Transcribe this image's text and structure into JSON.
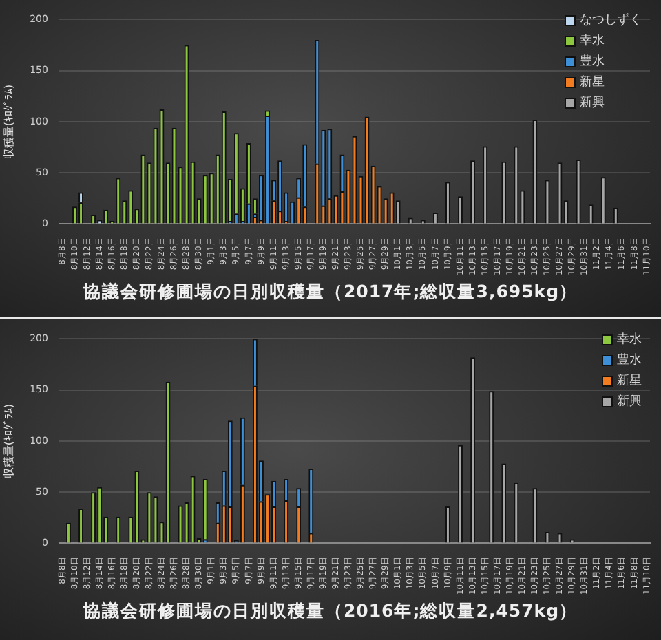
{
  "chart_data": [
    {
      "type": "bar",
      "title": "協議会研修圃場の日別収穫量（2017年;総収量3,695kg）",
      "ylabel": "収穫量(ｷﾛｸﾞﾗﾑ)",
      "stacked": true,
      "grid": "y",
      "legend": "top right",
      "ylim": [
        0,
        200
      ],
      "yticks": [
        0,
        50,
        100,
        150,
        200
      ],
      "categories": [
        "8月8日",
        null,
        "8月10日",
        null,
        "8月12日",
        null,
        "8月14日",
        null,
        "8月16日",
        null,
        "8月18日",
        null,
        "8月20日",
        null,
        "8月22日",
        null,
        "8月24日",
        null,
        "8月26日",
        null,
        "8月28日",
        null,
        "8月30日",
        null,
        "9月1日",
        null,
        "9月3日",
        null,
        "9月5日",
        null,
        "9月7日",
        null,
        "9月9日",
        null,
        "9月11日",
        null,
        "9月13日",
        null,
        "9月15日",
        null,
        "9月17日",
        null,
        "9月19日",
        null,
        "9月21日",
        null,
        "9月23日",
        null,
        "9月25日",
        null,
        "9月27日",
        null,
        "9月29日",
        null,
        "10月1日",
        null,
        "10月3日",
        null,
        "10月5日",
        null,
        "10月7日",
        null,
        "10月9日",
        null,
        "10月11日",
        null,
        "10月13日",
        null,
        "10月15日",
        null,
        "10月17日",
        null,
        "10月19日",
        null,
        "10月21日",
        null,
        "10月23日",
        null,
        "10月25日",
        null,
        "10月27日",
        null,
        "10月29日",
        null,
        "10月31日",
        null,
        "11月2日",
        null,
        "11月4日",
        null,
        "11月6日",
        null,
        "11月8日",
        null,
        "11月10日"
      ],
      "series": [
        {
          "name": "新興",
          "color": "#a6a6a6",
          "values": [
            null,
            null,
            null,
            null,
            null,
            null,
            null,
            null,
            null,
            null,
            null,
            null,
            null,
            null,
            null,
            null,
            null,
            null,
            null,
            null,
            null,
            null,
            null,
            null,
            null,
            null,
            null,
            null,
            null,
            null,
            null,
            null,
            null,
            null,
            null,
            null,
            null,
            null,
            null,
            null,
            null,
            null,
            null,
            null,
            null,
            null,
            null,
            null,
            null,
            null,
            null,
            null,
            null,
            null,
            23,
            null,
            6,
            null,
            4,
            null,
            11,
            null,
            41,
            null,
            27,
            null,
            62,
            null,
            76,
            null,
            null,
            61,
            null,
            76,
            33,
            null,
            102,
            null,
            43,
            null,
            60,
            23,
            null,
            63,
            null,
            19,
            null,
            46,
            null,
            16,
            null,
            null,
            null,
            null,
            null
          ]
        },
        {
          "name": "新星",
          "color": "#f47c20",
          "values": [
            null,
            null,
            null,
            null,
            null,
            null,
            null,
            null,
            null,
            null,
            null,
            null,
            null,
            null,
            null,
            null,
            null,
            null,
            null,
            null,
            null,
            null,
            null,
            null,
            null,
            null,
            null,
            null,
            null,
            null,
            null,
            7,
            4,
            null,
            23,
            13,
            3,
            null,
            26,
            17,
            null,
            59,
            18,
            25,
            28,
            32,
            53,
            86,
            47,
            105,
            57,
            37,
            25,
            31,
            null,
            null,
            null,
            null,
            null,
            null,
            null,
            null,
            null,
            null,
            null,
            null,
            null,
            null,
            null,
            null,
            null,
            null,
            null,
            null,
            null,
            null,
            null,
            null,
            null,
            null,
            null,
            null,
            null,
            null,
            null,
            null,
            null,
            null,
            null,
            null,
            null,
            null,
            null,
            null,
            null
          ]
        },
        {
          "name": "豊水",
          "color": "#3d8fd8",
          "values": [
            null,
            null,
            null,
            null,
            null,
            null,
            null,
            null,
            null,
            null,
            null,
            null,
            null,
            null,
            null,
            null,
            null,
            null,
            null,
            null,
            null,
            null,
            null,
            null,
            null,
            null,
            null,
            3,
            10,
            3,
            20,
            3,
            44,
            106,
            20,
            49,
            28,
            22,
            19,
            61,
            null,
            121,
            74,
            68,
            null,
            36,
            null,
            null,
            null,
            null,
            null,
            null,
            null,
            null,
            null,
            null,
            null,
            null,
            null,
            null,
            null,
            null,
            null,
            null,
            null,
            null,
            null,
            null,
            null,
            null,
            null,
            null,
            null,
            null,
            null,
            null,
            null,
            null,
            null,
            null,
            null,
            null,
            null,
            null,
            null,
            null,
            null,
            null,
            null,
            null,
            null,
            null,
            null,
            null,
            null
          ]
        },
        {
          "name": "幸水",
          "color": "#8dc63f",
          "values": [
            null,
            null,
            17,
            21,
            null,
            9,
            null,
            14,
            3,
            45,
            23,
            33,
            15,
            68,
            60,
            94,
            112,
            60,
            94,
            56,
            175,
            61,
            25,
            48,
            50,
            68,
            110,
            41,
            79,
            32,
            59,
            15,
            null,
            5,
            null,
            null,
            null,
            null,
            null,
            null,
            null,
            null,
            null,
            null,
            null,
            null,
            null,
            null,
            null,
            null,
            null,
            null,
            null,
            null,
            null,
            null,
            null,
            null,
            null,
            null,
            null,
            null,
            null,
            null,
            null,
            null,
            null,
            null,
            null,
            null,
            null,
            null,
            null,
            null,
            null,
            null,
            null,
            null,
            null,
            null,
            null,
            null,
            null,
            null,
            null,
            null,
            null,
            null,
            null,
            null,
            null,
            null,
            null,
            null,
            null
          ]
        },
        {
          "name": "なつしずく",
          "color": "#bdd7ee",
          "values": [
            null,
            null,
            null,
            10,
            null,
            null,
            4,
            null,
            null,
            null,
            null,
            null,
            null,
            null,
            null,
            null,
            null,
            null,
            null,
            null,
            null,
            null,
            null,
            null,
            null,
            null,
            null,
            null,
            null,
            null,
            null,
            null,
            null,
            null,
            null,
            null,
            null,
            null,
            null,
            null,
            null,
            null,
            null,
            null,
            null,
            null,
            null,
            null,
            null,
            null,
            null,
            null,
            null,
            null,
            null,
            null,
            null,
            null,
            null,
            null,
            null,
            null,
            null,
            null,
            null,
            null,
            null,
            null,
            null,
            null,
            null,
            null,
            null,
            null,
            null,
            null,
            null,
            null,
            null,
            null,
            null,
            null,
            null,
            null,
            null,
            null,
            null,
            null,
            null,
            null,
            null,
            null,
            null,
            null,
            null
          ]
        }
      ]
    },
    {
      "type": "bar",
      "title": "協議会研修圃場の日別収穫量（2016年;総収量2,457kg）",
      "ylabel": "収穫量(ｷﾛｸﾞﾗﾑ)",
      "stacked": true,
      "grid": "y",
      "legend": "top right",
      "ylim": [
        0,
        200
      ],
      "yticks": [
        0,
        50,
        100,
        150,
        200
      ],
      "categories": [
        "8月8日",
        null,
        "8月10日",
        null,
        "8月12日",
        null,
        "8月14日",
        null,
        "8月16日",
        null,
        "8月18日",
        null,
        "8月20日",
        null,
        "8月22日",
        null,
        "8月24日",
        null,
        "8月26日",
        null,
        "8月28日",
        null,
        "8月30日",
        null,
        "9月1日",
        null,
        "9月3日",
        null,
        "9月5日",
        null,
        "9月7日",
        null,
        "9月9日",
        null,
        "9月11日",
        null,
        "9月13日",
        null,
        "9月15日",
        null,
        "9月17日",
        null,
        "9月19日",
        null,
        "9月21日",
        null,
        "9月23日",
        null,
        "9月25日",
        null,
        "9月27日",
        null,
        "9月29日",
        null,
        "10月1日",
        null,
        "10月3日",
        null,
        "10月5日",
        null,
        "10月7日",
        null,
        "10月9日",
        null,
        "10月11日",
        null,
        "10月13日",
        null,
        "10月15日",
        null,
        "10月17日",
        null,
        "10月19日",
        null,
        "10月21日",
        null,
        "10月23日",
        null,
        "10月25日",
        null,
        "10月27日",
        null,
        "10月29日",
        null,
        "10月31日",
        null,
        "11月2日",
        null,
        "11月4日",
        null,
        "11月6日",
        null,
        "11月8日",
        null,
        "11月10日"
      ],
      "series": [
        {
          "name": "新興",
          "color": "#a6a6a6",
          "values": [
            null,
            null,
            null,
            null,
            null,
            null,
            null,
            null,
            null,
            null,
            null,
            null,
            null,
            null,
            null,
            null,
            null,
            null,
            null,
            null,
            null,
            null,
            null,
            null,
            null,
            null,
            null,
            null,
            null,
            null,
            null,
            null,
            null,
            null,
            null,
            null,
            null,
            null,
            null,
            null,
            null,
            null,
            null,
            null,
            null,
            null,
            null,
            null,
            null,
            null,
            null,
            null,
            null,
            null,
            null,
            null,
            null,
            null,
            null,
            null,
            null,
            null,
            36,
            null,
            96,
            null,
            182,
            null,
            null,
            149,
            null,
            78,
            null,
            59,
            null,
            null,
            54,
            null,
            11,
            null,
            10,
            null,
            4,
            null,
            null,
            null,
            null,
            null,
            null,
            null,
            null,
            null,
            null,
            null,
            null
          ]
        },
        {
          "name": "新星",
          "color": "#f47c20",
          "values": [
            null,
            null,
            null,
            null,
            null,
            null,
            null,
            null,
            null,
            null,
            null,
            null,
            null,
            null,
            null,
            null,
            null,
            null,
            null,
            null,
            null,
            null,
            null,
            null,
            null,
            20,
            37,
            36,
            null,
            57,
            null,
            154,
            41,
            48,
            36,
            null,
            42,
            null,
            36,
            null,
            10,
            null,
            null,
            null,
            null,
            null,
            null,
            null,
            null,
            null,
            null,
            null,
            null,
            null,
            null,
            null,
            null,
            null,
            null,
            null,
            null,
            null,
            null,
            null,
            null,
            null,
            null,
            null,
            null,
            null,
            null,
            null,
            null,
            null,
            null,
            null,
            null,
            null,
            null,
            null,
            null,
            null,
            null,
            null,
            null,
            null,
            null,
            null,
            null,
            null,
            null,
            null,
            null,
            null,
            null
          ]
        },
        {
          "name": "豊水",
          "color": "#3d8fd8",
          "values": [
            null,
            null,
            null,
            null,
            null,
            null,
            null,
            null,
            null,
            null,
            null,
            null,
            null,
            null,
            null,
            null,
            null,
            null,
            null,
            null,
            null,
            null,
            null,
            4,
            null,
            20,
            34,
            84,
            3,
            66,
            null,
            46,
            40,
            null,
            25,
            null,
            21,
            null,
            18,
            null,
            63,
            null,
            null,
            null,
            null,
            null,
            null,
            null,
            null,
            null,
            null,
            null,
            null,
            null,
            null,
            null,
            null,
            null,
            null,
            null,
            null,
            null,
            null,
            null,
            null,
            null,
            null,
            null,
            null,
            null,
            null,
            null,
            null,
            null,
            null,
            null,
            null,
            null,
            null,
            null,
            null,
            null,
            null,
            null,
            null,
            null,
            null,
            null,
            null,
            null,
            null,
            null,
            null,
            null,
            null
          ]
        },
        {
          "name": "幸水",
          "color": "#8dc63f",
          "values": [
            null,
            20,
            null,
            34,
            null,
            50,
            55,
            26,
            null,
            26,
            null,
            26,
            71,
            4,
            50,
            46,
            21,
            158,
            null,
            37,
            40,
            66,
            5,
            59,
            null,
            null,
            null,
            null,
            null,
            null,
            null,
            null,
            null,
            null,
            null,
            null,
            null,
            null,
            null,
            null,
            null,
            null,
            null,
            null,
            null,
            null,
            null,
            null,
            null,
            null,
            null,
            null,
            null,
            null,
            null,
            null,
            null,
            null,
            null,
            null,
            null,
            null,
            null,
            null,
            null,
            null,
            null,
            null,
            null,
            null,
            null,
            null,
            null,
            null,
            null,
            null,
            null,
            null,
            null,
            null,
            null,
            null,
            null,
            null,
            null,
            null,
            null,
            null,
            null,
            null,
            null,
            null,
            null,
            null,
            null
          ]
        }
      ]
    }
  ]
}
